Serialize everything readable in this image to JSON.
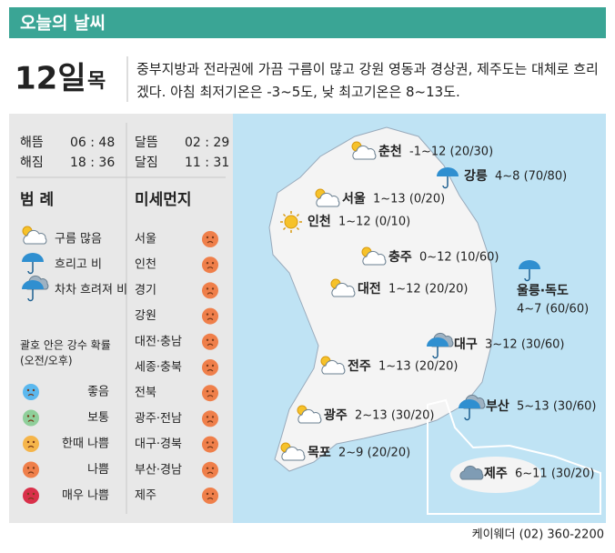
{
  "header": {
    "title": "오늘의 날씨"
  },
  "date": {
    "day": "12일",
    "weekday": "목",
    "summary": "중부지방과 전라권에 가끔 구름이 많고 강원 영동과 경상권, 제주도는 대체로 흐리겠다. 아침 최저기온은 -3~5도, 낮 최고기온은 8~13도."
  },
  "sun_moon": [
    {
      "label": "해뜸",
      "time": "06 : 48"
    },
    {
      "label": "해짐",
      "time": "18 : 36"
    },
    {
      "label": "달뜸",
      "time": "02 : 29"
    },
    {
      "label": "달짐",
      "time": "11 : 31"
    }
  ],
  "legend": {
    "title": "범 례",
    "items": [
      "구름 많음",
      "흐리고 비",
      "차차 흐려져 비"
    ],
    "note": [
      "괄호 안은 강수 확률",
      "(오전/오후)"
    ],
    "levels": [
      {
        "label": "좋음",
        "color": "#5bb8ee"
      },
      {
        "label": "보통",
        "color": "#8fcf9a"
      },
      {
        "label": "한때 나쁨",
        "color": "#f5b54a"
      },
      {
        "label": "나쁨",
        "color": "#ef7f4a"
      },
      {
        "label": "매우 나쁨",
        "color": "#d9304a"
      }
    ]
  },
  "dust": {
    "title": "미세먼지",
    "regions": [
      "서울",
      "인천",
      "경기",
      "강원",
      "대전·충남",
      "세종·충북",
      "전북",
      "광주·전남",
      "대구·경북",
      "부산·경남",
      "제주"
    ]
  },
  "cities": [
    {
      "name": "춘천",
      "forecast": "-1~12 (20/30)"
    },
    {
      "name": "강릉",
      "forecast": "4~8 (70/80)"
    },
    {
      "name": "서울",
      "forecast": "1~13 (0/20)"
    },
    {
      "name": "인천",
      "forecast": "1~12 (0/10)"
    },
    {
      "name": "충주",
      "forecast": "0~12 (10/60)"
    },
    {
      "name": "울릉·독도",
      "forecast": "4~7 (60/60)"
    },
    {
      "name": "대전",
      "forecast": "1~12 (20/20)"
    },
    {
      "name": "대구",
      "forecast": "3~12 (30/60)"
    },
    {
      "name": "전주",
      "forecast": "1~13 (20/20)"
    },
    {
      "name": "부산",
      "forecast": "5~13 (30/60)"
    },
    {
      "name": "광주",
      "forecast": "2~13 (30/20)"
    },
    {
      "name": "목포",
      "forecast": "2~9 (20/20)"
    },
    {
      "name": "제주",
      "forecast": "6~11 (30/20)"
    }
  ],
  "footer": "케이웨더 (02) 360-2200"
}
